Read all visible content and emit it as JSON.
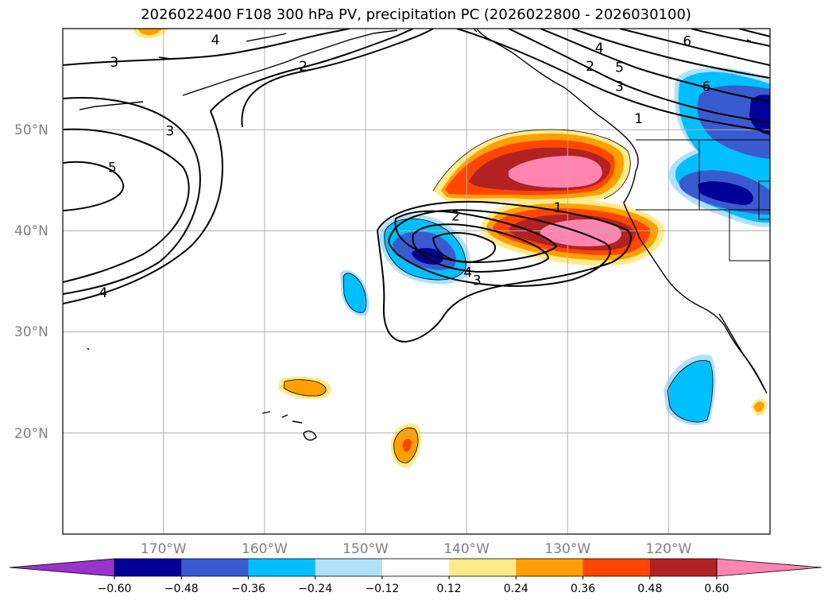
{
  "title": "2026022400 F108 300 hPa PV, precipitation PC (2026022800 - 2026030100)",
  "map": {
    "lon_range": [
      -180,
      -110
    ],
    "lat_range": [
      10,
      60
    ],
    "gridlines": true,
    "lat_ticks": [
      {
        "value": 50,
        "label": "50°N"
      },
      {
        "value": 40,
        "label": "40°N"
      },
      {
        "value": 30,
        "label": "30°N"
      },
      {
        "value": 20,
        "label": "20°N"
      }
    ],
    "lon_ticks": [
      {
        "value": -170,
        "label": "170°W"
      },
      {
        "value": -160,
        "label": "160°W"
      },
      {
        "value": -150,
        "label": "150°W"
      },
      {
        "value": -140,
        "label": "140°W"
      },
      {
        "value": -130,
        "label": "130°W"
      },
      {
        "value": -120,
        "label": "120°W"
      }
    ]
  },
  "colorbar": {
    "colors": [
      "#9933cc",
      "#000099",
      "#3a5bcf",
      "#00bfff",
      "#b0e0fa",
      "#ffffff",
      "#ffeb8a",
      "#ffa000",
      "#ff4500",
      "#b22222",
      "#ff85b0"
    ],
    "labels": [
      "−0.60",
      "−0.48",
      "−0.36",
      "−0.24",
      "−0.12",
      "0.12",
      "0.24",
      "0.36",
      "0.48",
      "0.60"
    ]
  },
  "pv_contour_labels": [
    {
      "text": "4",
      "lon": -164.9,
      "lat": 58.9
    },
    {
      "text": "3",
      "lon": -174.9,
      "lat": 56.7
    },
    {
      "text": "2",
      "lon": -156.2,
      "lat": 56.3
    },
    {
      "text": "3",
      "lon": -169.4,
      "lat": 49.9
    },
    {
      "text": "5",
      "lon": -175.1,
      "lat": 46.3
    },
    {
      "text": "4",
      "lon": -176.0,
      "lat": 33.9
    },
    {
      "text": "2",
      "lon": -141.1,
      "lat": 41.5
    },
    {
      "text": "1",
      "lon": -131.0,
      "lat": 42.3
    },
    {
      "text": "4",
      "lon": -139.9,
      "lat": 35.9
    },
    {
      "text": "3",
      "lon": -139.0,
      "lat": 35.1
    },
    {
      "text": "4",
      "lon": -126.9,
      "lat": 58.1
    },
    {
      "text": "2",
      "lon": -127.8,
      "lat": 56.3
    },
    {
      "text": "5",
      "lon": -124.9,
      "lat": 56.2
    },
    {
      "text": "3",
      "lon": -124.9,
      "lat": 54.3
    },
    {
      "text": "1",
      "lon": -123.0,
      "lat": 51.1
    },
    {
      "text": "6",
      "lon": -118.2,
      "lat": 58.8
    },
    {
      "text": "6",
      "lon": -116.3,
      "lat": 54.3
    }
  ]
}
